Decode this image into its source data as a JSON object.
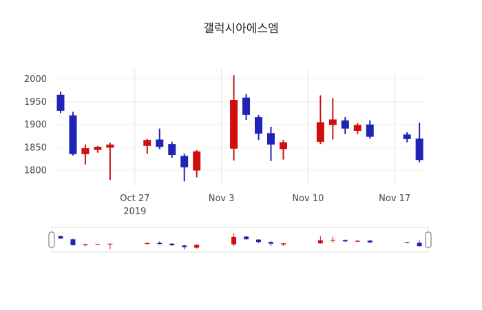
{
  "chart": {
    "title": "갤럭시아에스엠",
    "colors": {
      "title_text": "#222222",
      "axis_text": "#444444",
      "grid_vertical": "#e3e3e3",
      "grid_horizontal": "#efefef",
      "rangeslider_border": "#dddddd",
      "rangeslider_handle_fill": "#ffffff",
      "rangeslider_handle_border": "#8a8a8a"
    },
    "y_axis": {
      "ticks": [
        2000,
        1950,
        1900,
        1850,
        1800
      ]
    },
    "x_axis": {
      "ticks": [
        {
          "label": "Oct 27",
          "sublabel": "2019",
          "day": 6
        },
        {
          "label": "Nov 3",
          "sublabel": "",
          "day": 13
        },
        {
          "label": "Nov 10",
          "sublabel": "",
          "day": 20
        },
        {
          "label": "Nov 17",
          "sublabel": "",
          "day": 27
        }
      ]
    }
  },
  "chart_data": {
    "type": "candlestick",
    "title": "갤럭시아에스엠",
    "x": [
      "2019-10-21",
      "2019-10-22",
      "2019-10-23",
      "2019-10-24",
      "2019-10-25",
      "2019-10-28",
      "2019-10-29",
      "2019-10-30",
      "2019-10-31",
      "2019-11-01",
      "2019-11-04",
      "2019-11-05",
      "2019-11-06",
      "2019-11-07",
      "2019-11-08",
      "2019-11-11",
      "2019-11-12",
      "2019-11-13",
      "2019-11-14",
      "2019-11-15",
      "2019-11-18",
      "2019-11-19"
    ],
    "open": [
      1965,
      1920,
      1835,
      1844,
      1849,
      1853,
      1867,
      1857,
      1831,
      1799,
      1847,
      1959,
      1916,
      1881,
      1846,
      1862,
      1899,
      1909,
      1886,
      1900,
      1878,
      1869
    ],
    "high": [
      1972,
      1928,
      1856,
      1853,
      1860,
      1868,
      1891,
      1862,
      1836,
      1844,
      2008,
      1967,
      1921,
      1895,
      1866,
      1964,
      1958,
      1916,
      1903,
      1909,
      1883,
      1904
    ],
    "low": [
      1925,
      1832,
      1812,
      1838,
      1778,
      1836,
      1846,
      1827,
      1775,
      1784,
      1821,
      1910,
      1866,
      1820,
      1823,
      1857,
      1867,
      1879,
      1879,
      1869,
      1861,
      1817
    ],
    "close": [
      1930,
      1835,
      1848,
      1851,
      1856,
      1866,
      1851,
      1833,
      1806,
      1841,
      1954,
      1921,
      1880,
      1856,
      1861,
      1905,
      1911,
      1891,
      1899,
      1873,
      1868,
      1822
    ],
    "increasing_color": "#d10e0e",
    "decreasing_color": "#1f24b4",
    "ylim": [
      1765,
      2022
    ],
    "x_range": [
      "2019-10-21",
      "2019-11-19"
    ],
    "grid": true,
    "legend": false,
    "rangeslider": true
  }
}
